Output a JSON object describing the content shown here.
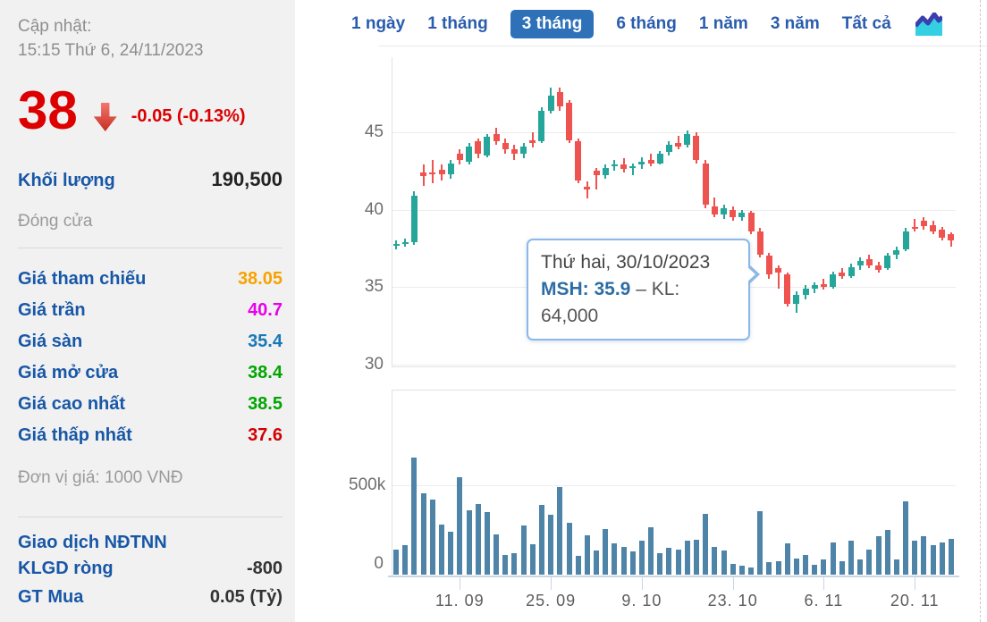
{
  "left_panel": {
    "updated_label": "Cập nhật:",
    "updated_time": "15:15 Thứ 6, 24/11/2023",
    "price": "38",
    "change": "-0.05 (-0.13%)",
    "volume_label": "Khối lượng",
    "volume_value": "190,500",
    "close_label": "Đóng cửa",
    "stats": [
      {
        "label": "Giá tham chiếu",
        "value": "38.05",
        "color": "#f7a200"
      },
      {
        "label": "Giá trần",
        "value": "40.7",
        "color": "#e800e8"
      },
      {
        "label": "Giá sàn",
        "value": "35.4",
        "color": "#1778b8"
      },
      {
        "label": "Giá mở cửa",
        "value": "38.4",
        "color": "#00a500"
      },
      {
        "label": "Giá cao nhất",
        "value": "38.5",
        "color": "#00a500"
      },
      {
        "label": "Giá thấp nhất",
        "value": "37.6",
        "color": "#d20000"
      }
    ],
    "unit_note": "Đơn vị giá: 1000 VNĐ",
    "foreign_section_label": "Giao dịch NĐTNN",
    "foreign_rows": [
      {
        "label": "KLGD ròng",
        "value": "-800"
      },
      {
        "label": "GT Mua",
        "value": "0.05 (Tỷ)"
      }
    ]
  },
  "tabs": {
    "items": [
      {
        "label": "1 ngày",
        "active": false
      },
      {
        "label": "1 tháng",
        "active": false
      },
      {
        "label": "3 tháng",
        "active": true
      },
      {
        "label": "6 tháng",
        "active": false
      },
      {
        "label": "1 năm",
        "active": false
      },
      {
        "label": "3 năm",
        "active": false
      },
      {
        "label": "Tất cả",
        "active": false
      }
    ],
    "chart_type_icon": "area-chart-icon"
  },
  "tooltip": {
    "date": "Thứ hai, 30/10/2023",
    "symbol_price": "MSH: 35.9",
    "rest": "– KL: 64,000"
  },
  "chart_data": [
    {
      "type": "candlestick",
      "symbol": "MSH",
      "y_ticks": [
        45,
        40,
        35,
        30
      ],
      "ylim": [
        29.8,
        49.8
      ],
      "colors": {
        "up": "#26a69a",
        "down": "#ef5350"
      },
      "grid": true,
      "candles": [
        [
          37.7,
          38.0,
          37.4,
          37.8
        ],
        [
          37.8,
          38.1,
          37.6,
          37.9
        ],
        [
          37.9,
          41.2,
          37.7,
          40.9
        ],
        [
          42.4,
          42.9,
          41.5,
          42.2
        ],
        [
          42.4,
          43.2,
          41.7,
          42.3
        ],
        [
          42.6,
          42.9,
          41.9,
          42.3
        ],
        [
          42.3,
          43.2,
          42.0,
          43.0
        ],
        [
          43.6,
          43.9,
          42.9,
          43.2
        ],
        [
          43.1,
          44.3,
          42.9,
          44.1
        ],
        [
          44.4,
          44.6,
          43.3,
          43.6
        ],
        [
          43.5,
          44.9,
          43.4,
          44.7
        ],
        [
          44.9,
          45.3,
          44.2,
          44.4
        ],
        [
          44.3,
          44.6,
          43.6,
          43.9
        ],
        [
          43.9,
          44.2,
          43.2,
          43.6
        ],
        [
          43.6,
          44.3,
          43.3,
          44.1
        ],
        [
          44.5,
          45.0,
          44.0,
          44.3
        ],
        [
          44.4,
          46.6,
          44.3,
          46.4
        ],
        [
          46.4,
          47.9,
          46.2,
          47.4
        ],
        [
          47.6,
          47.9,
          46.4,
          46.7
        ],
        [
          46.9,
          47.1,
          44.3,
          44.5
        ],
        [
          44.4,
          44.6,
          41.7,
          41.9
        ],
        [
          41.5,
          41.8,
          40.7,
          41.3
        ],
        [
          42.5,
          42.7,
          41.3,
          42.2
        ],
        [
          42.2,
          42.9,
          42.0,
          42.7
        ],
        [
          42.8,
          43.2,
          42.5,
          42.9
        ],
        [
          42.9,
          43.3,
          42.4,
          42.6
        ],
        [
          42.7,
          43.0,
          42.2,
          42.8
        ],
        [
          42.9,
          43.4,
          42.6,
          43.1
        ],
        [
          43.2,
          43.6,
          42.8,
          43.0
        ],
        [
          43.0,
          43.8,
          42.9,
          43.6
        ],
        [
          43.7,
          44.4,
          43.5,
          44.2
        ],
        [
          44.3,
          44.8,
          43.9,
          44.1
        ],
        [
          44.2,
          45.1,
          44.0,
          44.9
        ],
        [
          44.8,
          45.0,
          43.0,
          43.2
        ],
        [
          43.0,
          43.2,
          40.1,
          40.3
        ],
        [
          40.2,
          40.8,
          39.5,
          39.7
        ],
        [
          39.7,
          40.3,
          39.4,
          40.1
        ],
        [
          40.0,
          40.2,
          39.3,
          39.5
        ],
        [
          39.5,
          40.0,
          39.3,
          39.8
        ],
        [
          39.8,
          39.9,
          38.4,
          38.6
        ],
        [
          38.6,
          38.8,
          36.9,
          37.1
        ],
        [
          37.0,
          37.2,
          35.5,
          35.8
        ],
        [
          36.2,
          36.4,
          34.9,
          35.9
        ],
        [
          35.8,
          35.9,
          33.7,
          33.9
        ],
        [
          33.9,
          34.7,
          33.3,
          34.5
        ],
        [
          34.5,
          35.1,
          34.2,
          34.9
        ],
        [
          34.9,
          35.3,
          34.6,
          35.1
        ],
        [
          35.2,
          35.5,
          34.8,
          35.0
        ],
        [
          35.0,
          36.0,
          34.9,
          35.8
        ],
        [
          35.9,
          36.2,
          35.5,
          35.7
        ],
        [
          35.7,
          36.5,
          35.6,
          36.3
        ],
        [
          36.4,
          36.9,
          36.1,
          36.7
        ],
        [
          36.8,
          37.1,
          36.2,
          36.4
        ],
        [
          36.4,
          36.6,
          35.9,
          36.1
        ],
        [
          36.2,
          37.2,
          36.1,
          37.0
        ],
        [
          37.1,
          37.6,
          36.8,
          37.4
        ],
        [
          37.4,
          38.8,
          37.3,
          38.6
        ],
        [
          38.9,
          39.4,
          38.6,
          38.8
        ],
        [
          39.3,
          39.5,
          38.7,
          38.9
        ],
        [
          39.0,
          39.3,
          38.4,
          38.6
        ],
        [
          38.7,
          38.9,
          38.0,
          38.2
        ],
        [
          38.4,
          38.5,
          37.6,
          38.0
        ]
      ]
    },
    {
      "type": "bar",
      "name": "volume",
      "color": "#4e84a8",
      "y_ticks_labels": [
        "500k",
        "0"
      ],
      "y_gridline_k": 500,
      "values_k": [
        130,
        155,
        660,
        455,
        420,
        275,
        230,
        545,
        355,
        390,
        345,
        215,
        100,
        110,
        270,
        160,
        385,
        330,
        490,
        285,
        95,
        210,
        125,
        250,
        165,
        145,
        120,
        180,
        260,
        110,
        140,
        130,
        180,
        185,
        335,
        145,
        125,
        49,
        36,
        25,
        353,
        57,
        64,
        163,
        78,
        98,
        41,
        74,
        172,
        62,
        180,
        74,
        131,
        204,
        245,
        74,
        408,
        180,
        204,
        155,
        172,
        190.5
      ],
      "x_tick_labels": [
        "11. 09",
        "25. 09",
        "9. 10",
        "23. 10",
        "6. 11",
        "20. 11"
      ],
      "x_tick_indices": [
        7,
        17,
        27,
        37,
        47,
        57
      ]
    }
  ]
}
